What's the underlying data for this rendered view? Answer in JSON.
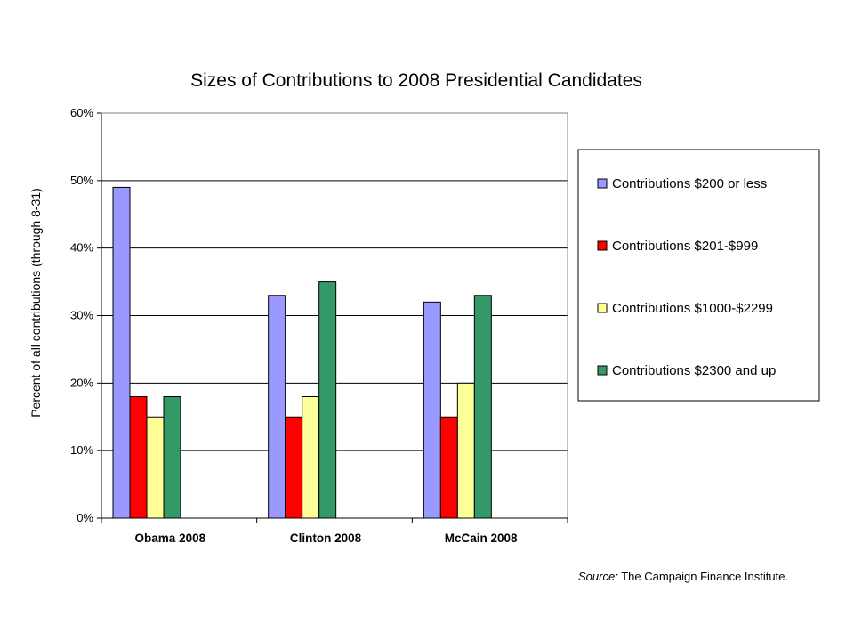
{
  "chart_data": {
    "type": "bar",
    "title": "Sizes of Contributions to 2008 Presidential Candidates",
    "xlabel": "",
    "ylabel": "Percent of all contributions (through 8-31)",
    "categories": [
      "Obama 2008",
      "Clinton 2008",
      "McCain 2008"
    ],
    "yticks": [
      "0%",
      "10%",
      "20%",
      "30%",
      "40%",
      "50%",
      "60%"
    ],
    "ylim": [
      0,
      60
    ],
    "grid": true,
    "legend_position": "right",
    "series": [
      {
        "name": "Contributions $200 or less",
        "color": "#9999ff",
        "values": [
          49,
          33,
          32
        ]
      },
      {
        "name": "Contributions $201-$999",
        "color": "#ff0000",
        "values": [
          18,
          15,
          15
        ]
      },
      {
        "name": "Contributions $1000-$2299",
        "color": "#ffff99",
        "values": [
          15,
          18,
          20
        ]
      },
      {
        "name": "Contributions $2300 and up",
        "color": "#339966",
        "values": [
          18,
          35,
          33
        ]
      }
    ]
  },
  "source": {
    "label": "Source:",
    "text": " The Campaign Finance Institute."
  }
}
